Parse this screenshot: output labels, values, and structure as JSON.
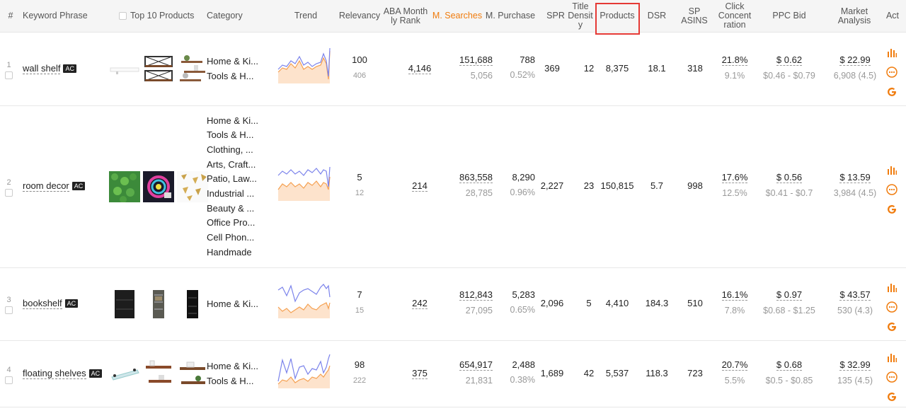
{
  "header": {
    "index": "#",
    "keyword": "Keyword Phrase",
    "top10": "Top 10 Products",
    "category": "Category",
    "trend": "Trend",
    "relevancy": "Relevancy",
    "aba_line1": "ABA Month",
    "aba_line2": "ly Rank",
    "m_searches": "M. Searches",
    "m_purchase": "M. Purchase",
    "spr": "SPR",
    "title_line1": "Title",
    "title_line2": "Densit",
    "title_line3": "y",
    "products": "Products",
    "dsr": "DSR",
    "sp_line1": "SP",
    "sp_line2": "ASINS",
    "click_line1": "Click",
    "click_line2": "Concent",
    "click_line3": "ration",
    "ppc": "PPC Bid",
    "market_line1": "Market",
    "market_line2": "Analysis",
    "act": "Act"
  },
  "colors": {
    "accent": "#f07c0e",
    "highlight": "#e53935",
    "trend_blue": "#7b83eb",
    "trend_orange": "#f5a050"
  },
  "rows": [
    {
      "index": "1",
      "keyword": "wall shelf",
      "ac": "AC",
      "categories": [
        "Home & Ki...",
        "Tools & H..."
      ],
      "relevancy": "100",
      "relevancy_sub": "406",
      "aba_rank": "4,146",
      "searches": "151,688",
      "searches_sub": "5,056",
      "purchase": "788",
      "purchase_rate": "0.52%",
      "spr": "369",
      "title_density": "12",
      "products": "8,375",
      "dsr": "18.1",
      "sp_asins": "318",
      "click": "21.8%",
      "click_sub": "9.1%",
      "ppc": "$ 0.62",
      "ppc_range": "$0.46 - $0.79",
      "market": "$ 22.99",
      "market_sub": "6,908 (4.5)"
    },
    {
      "index": "2",
      "keyword": "room decor",
      "ac": "AC",
      "categories": [
        "Home & Ki...",
        "Tools & H...",
        "Clothing, ...",
        "Arts, Craft...",
        "Patio, Law...",
        "Industrial ...",
        "Beauty & ...",
        "Office Pro...",
        "Cell Phon...",
        "Handmade"
      ],
      "relevancy": "5",
      "relevancy_sub": "12",
      "aba_rank": "214",
      "searches": "863,558",
      "searches_sub": "28,785",
      "purchase": "8,290",
      "purchase_rate": "0.96%",
      "spr": "2,227",
      "title_density": "23",
      "products": "150,815",
      "dsr": "5.7",
      "sp_asins": "998",
      "click": "17.6%",
      "click_sub": "12.5%",
      "ppc": "$ 0.56",
      "ppc_range": "$0.41 - $0.7",
      "market": "$ 13.59",
      "market_sub": "3,984 (4.5)"
    },
    {
      "index": "3",
      "keyword": "bookshelf",
      "ac": "AC",
      "categories": [
        "Home & Ki..."
      ],
      "relevancy": "7",
      "relevancy_sub": "15",
      "aba_rank": "242",
      "searches": "812,843",
      "searches_sub": "27,095",
      "purchase": "5,283",
      "purchase_rate": "0.65%",
      "spr": "2,096",
      "title_density": "5",
      "products": "4,410",
      "dsr": "184.3",
      "sp_asins": "510",
      "click": "16.1%",
      "click_sub": "7.8%",
      "ppc": "$ 0.97",
      "ppc_range": "$0.68 - $1.25",
      "market": "$ 43.57",
      "market_sub": "530 (4.3)"
    },
    {
      "index": "4",
      "keyword": "floating shelves",
      "ac": "AC",
      "categories": [
        "Home & Ki...",
        "Tools & H..."
      ],
      "relevancy": "98",
      "relevancy_sub": "222",
      "aba_rank": "375",
      "searches": "654,917",
      "searches_sub": "21,831",
      "purchase": "2,488",
      "purchase_rate": "0.38%",
      "spr": "1,689",
      "title_density": "42",
      "products": "5,537",
      "dsr": "118.3",
      "sp_asins": "723",
      "click": "20.7%",
      "click_sub": "5.5%",
      "ppc": "$ 0.68",
      "ppc_range": "$0.5 - $0.85",
      "market": "$ 32.99",
      "market_sub": "135 (4.5)"
    }
  ]
}
